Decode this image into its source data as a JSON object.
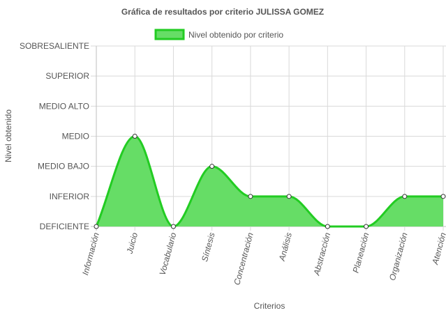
{
  "chart_data": {
    "type": "area",
    "title": "Gráfica de resultados por criterio JULISSA GOMEZ",
    "xlabel": "Criterios",
    "ylabel": "Nivel obtenido",
    "legend": {
      "position": "top",
      "entries": [
        "Nivel obtenido por criterio"
      ]
    },
    "categories": [
      "Información",
      "Juicio",
      "Vocabulario",
      "Síntesis",
      "Concentración",
      "Análisis",
      "Abstracción",
      "Planeación",
      "Organización",
      "Atención"
    ],
    "y_levels": [
      "DEFICIENTE",
      "INFERIOR",
      "MEDIO BAJO",
      "MEDIO",
      "MEDIO ALTO",
      "SUPERIOR",
      "SOBRESALIENTE"
    ],
    "ylim": [
      0,
      6
    ],
    "grid": true,
    "series": [
      {
        "name": "Nivel obtenido por criterio",
        "values": [
          0,
          3,
          0,
          2,
          1,
          1,
          0,
          0,
          1,
          1
        ]
      }
    ],
    "colors": {
      "fill": "#66dd66",
      "line": "#22cc22",
      "point_fill": "#ffffff",
      "point_stroke": "#333333"
    }
  }
}
